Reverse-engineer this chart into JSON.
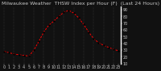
{
  "title": "Milwaukee Weather  THSW Index per Hour (F)  (Last 24 Hours)",
  "bg_color": "#111111",
  "plot_bg_color": "#111111",
  "line_color": "#ff0000",
  "marker_color": "#000000",
  "grid_color": "#888888",
  "text_color": "#c8c8c8",
  "spine_color": "#ffffff",
  "x_values": [
    0,
    1,
    2,
    3,
    4,
    5,
    6,
    7,
    8,
    9,
    10,
    11,
    12,
    13,
    14,
    15,
    16,
    17,
    18,
    19,
    20,
    21,
    22,
    23
  ],
  "y_values": [
    28,
    26,
    24,
    23,
    22,
    21,
    30,
    43,
    57,
    67,
    73,
    80,
    86,
    89,
    85,
    78,
    68,
    57,
    47,
    41,
    37,
    34,
    31,
    29
  ],
  "ylim": [
    10,
    95
  ],
  "xlim": [
    -0.5,
    23.5
  ],
  "ytick_values": [
    10,
    20,
    30,
    40,
    50,
    60,
    70,
    80,
    90
  ],
  "ytick_labels": [
    "10",
    "20",
    "30",
    "40",
    "50",
    "60",
    "70",
    "80",
    "90"
  ],
  "xtick_values": [
    0,
    1,
    2,
    3,
    4,
    5,
    6,
    7,
    8,
    9,
    10,
    11,
    12,
    13,
    14,
    15,
    16,
    17,
    18,
    19,
    20,
    21,
    22,
    23
  ],
  "xtick_labels": [
    "0",
    "1",
    "2",
    "3",
    "4",
    "5",
    "6",
    "7",
    "8",
    "9",
    "10",
    "11",
    "12",
    "13",
    "14",
    "15",
    "16",
    "17",
    "18",
    "19",
    "20",
    "21",
    "22",
    "23"
  ],
  "vgrid_positions": [
    0,
    2,
    4,
    6,
    8,
    10,
    12,
    14,
    16,
    18,
    20,
    22
  ],
  "title_fontsize": 4.5,
  "tick_fontsize": 3.5,
  "line_width": 0.7,
  "marker_size": 1.3,
  "dash_pattern": [
    2.5,
    1.5
  ]
}
